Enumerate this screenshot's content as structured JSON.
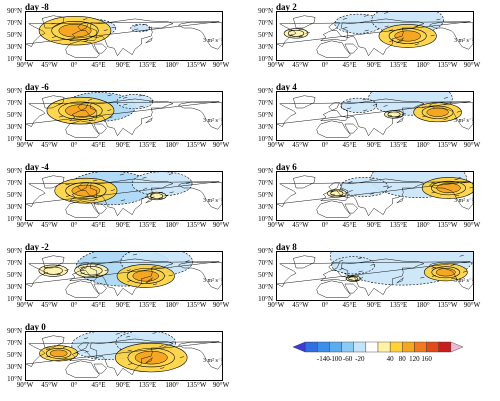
{
  "panels": [
    {
      "title": "day -8"
    },
    {
      "title": "day 2"
    },
    {
      "title": "day -6"
    },
    {
      "title": "day 4"
    },
    {
      "title": "day -4"
    },
    {
      "title": "day 6"
    },
    {
      "title": "day -2"
    },
    {
      "title": "day 8"
    },
    {
      "title": "day 0"
    }
  ],
  "lat_labels": [
    "90°N",
    "70°N",
    "50°N",
    "30°N",
    "10°N"
  ],
  "lon_labels": [
    "90°W",
    "45°W",
    "0°",
    "45°E",
    "90°E",
    "135°E",
    "180°",
    "135°W",
    "90°W"
  ],
  "vector_scale_label": "3 m² s⁻²",
  "colorbar": {
    "ticks": [
      "-140",
      "-100",
      "-60",
      "-20",
      "40",
      "80",
      "120",
      "160"
    ],
    "colors": [
      "#3b3bd8",
      "#2f6fe0",
      "#3c8ee8",
      "#5cacf0",
      "#8ccaf5",
      "#c4e4fa",
      "#ffffff",
      "#fff2a8",
      "#ffd23c",
      "#f5a623",
      "#f07b1e",
      "#e24a1a",
      "#c81e1e",
      "#f5b8d4"
    ]
  },
  "map_data": {
    "region": "Northern Hemisphere, 90°W eastward to 90°W, 0°–90°N",
    "shading": "composite anomaly (positive warm colors, negative blue); contours and wave-activity flux vectors overlaid",
    "panels": {
      "day -8": {
        "pos": [
          [
            0,
            55,
            30,
            1
          ]
        ],
        "neg": [
          [
            35,
            60,
            18,
            0.6
          ],
          [
            120,
            60,
            8,
            0.4
          ]
        ]
      },
      "day -6": {
        "pos": [
          [
            10,
            55,
            28,
            1
          ]
        ],
        "neg": [
          [
            45,
            62,
            30,
            0.7
          ],
          [
            110,
            72,
            15,
            0.5
          ]
        ]
      },
      "day -4": {
        "pos": [
          [
            20,
            55,
            26,
            1
          ],
          [
            150,
            45,
            8,
            0.5
          ]
        ],
        "neg": [
          [
            65,
            60,
            35,
            0.7
          ],
          [
            160,
            68,
            25,
            0.5
          ]
        ]
      },
      "day -2": {
        "pos": [
          [
            -40,
            55,
            12,
            0.7
          ],
          [
            30,
            55,
            14,
            0.7
          ],
          [
            130,
            45,
            24,
            1
          ]
        ],
        "neg": [
          [
            90,
            62,
            40,
            0.7
          ],
          [
            150,
            72,
            30,
            0.5
          ]
        ]
      },
      "day 0": {
        "pos": [
          [
            -30,
            50,
            16,
            0.9
          ],
          [
            140,
            42,
            30,
            1
          ]
        ],
        "neg": [
          [
            60,
            65,
            30,
            0.6
          ],
          [
            130,
            70,
            25,
            0.6
          ]
        ]
      },
      "day 2": {
        "pos": [
          [
            -55,
            50,
            10,
            0.7
          ],
          [
            150,
            45,
            24,
            1
          ]
        ],
        "neg": [
          [
            60,
            68,
            20,
            0.5
          ],
          [
            150,
            75,
            30,
            0.6
          ]
        ]
      },
      "day 4": {
        "pos": [
          [
            205,
            52,
            20,
            1
          ],
          [
            125,
            48,
            8,
            0.5
          ]
        ],
        "neg": [
          [
            155,
            78,
            35,
            0.6
          ],
          [
            60,
            65,
            15,
            0.4
          ]
        ]
      },
      "day 6": {
        "pos": [
          [
            225,
            60,
            22,
            1
          ],
          [
            20,
            50,
            8,
            0.4
          ]
        ],
        "neg": [
          [
            170,
            78,
            40,
            0.6
          ],
          [
            70,
            62,
            20,
            0.4
          ]
        ]
      },
      "day 8": {
        "pos": [
          [
            220,
            52,
            18,
            1
          ],
          [
            50,
            40,
            6,
            0.4
          ]
        ],
        "neg": [
          [
            140,
            82,
            60,
            0.5
          ],
          [
            50,
            65,
            18,
            0.4
          ]
        ]
      }
    }
  }
}
